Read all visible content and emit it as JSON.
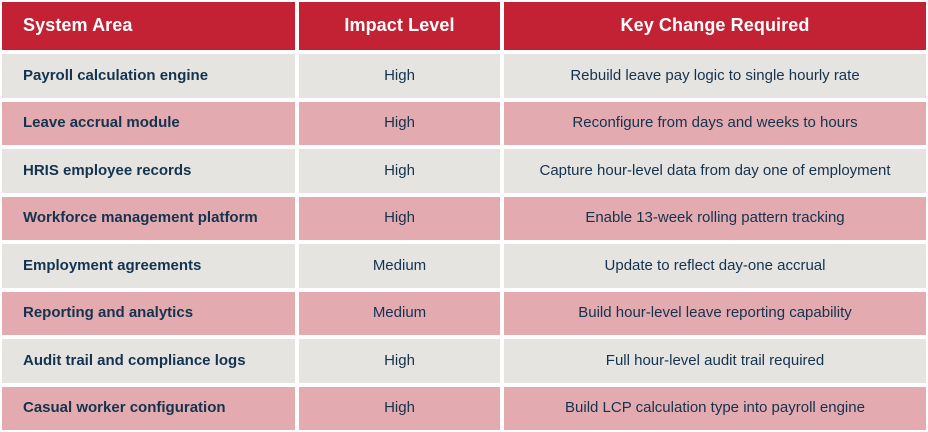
{
  "colors": {
    "header_bg": "#c22233",
    "row_pink": "#e3aab0",
    "row_gray": "#e5e4e1",
    "text_navy": "#13334e",
    "header_text": "#ffffff",
    "divider": "#ffffff"
  },
  "table": {
    "headers": {
      "system_area": "System Area",
      "impact_level": "Impact Level",
      "key_change": "Key Change Required"
    },
    "rows": [
      {
        "system_area": "Payroll calculation engine",
        "impact_level": "High",
        "key_change": "Rebuild leave pay logic to single hourly rate"
      },
      {
        "system_area": "Leave accrual module",
        "impact_level": "High",
        "key_change": "Reconfigure from days and weeks to hours"
      },
      {
        "system_area": "HRIS employee records",
        "impact_level": "High",
        "key_change": "Capture hour-level data from day one of employment"
      },
      {
        "system_area": "Workforce management platform",
        "impact_level": "High",
        "key_change": "Enable 13-week rolling pattern tracking"
      },
      {
        "system_area": "Employment agreements",
        "impact_level": "Medium",
        "key_change": "Update to reflect day-one accrual"
      },
      {
        "system_area": "Reporting and analytics",
        "impact_level": "Medium",
        "key_change": "Build hour-level leave reporting capability"
      },
      {
        "system_area": "Audit trail and compliance logs",
        "impact_level": "High",
        "key_change": "Full hour-level audit trail required"
      },
      {
        "system_area": "Casual worker configuration",
        "impact_level": "High",
        "key_change": "Build LCP calculation type into payroll engine"
      }
    ]
  },
  "chart_data": {
    "type": "table",
    "title": "",
    "columns": [
      "System Area",
      "Impact Level",
      "Key Change Required"
    ],
    "rows": [
      [
        "Payroll calculation engine",
        "High",
        "Rebuild leave pay logic to single hourly rate"
      ],
      [
        "Leave accrual module",
        "High",
        "Reconfigure from days and weeks to hours"
      ],
      [
        "HRIS employee records",
        "High",
        "Capture hour-level data from day one of employment"
      ],
      [
        "Workforce management platform",
        "High",
        "Enable 13-week rolling pattern tracking"
      ],
      [
        "Employment agreements",
        "Medium",
        "Update to reflect day-one accrual"
      ],
      [
        "Reporting and analytics",
        "Medium",
        "Build hour-level leave reporting capability"
      ],
      [
        "Audit trail and compliance logs",
        "High",
        "Full hour-level audit trail required"
      ],
      [
        "Casual worker configuration",
        "High",
        "Build LCP calculation type into payroll engine"
      ]
    ],
    "layout_hints": {
      "header_style": "red band, white bold text",
      "row_striping": [
        "gray",
        "pink"
      ],
      "column_alignment": [
        "left",
        "center",
        "center"
      ]
    }
  }
}
